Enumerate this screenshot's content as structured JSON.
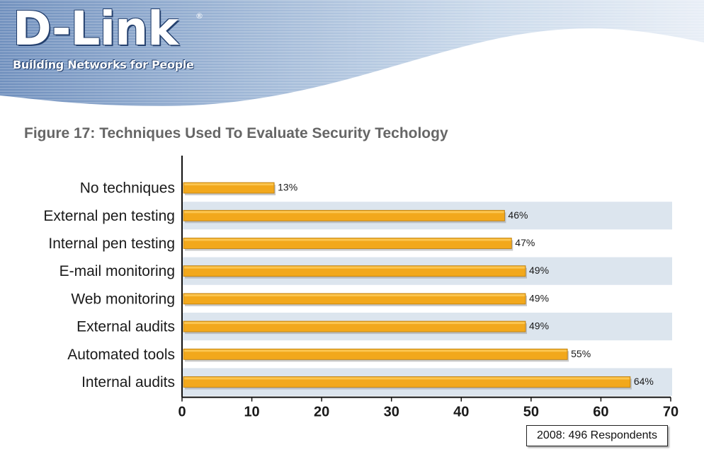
{
  "header": {
    "logo_text": "D-Link",
    "registered_mark": "®",
    "tagline": "Building Networks for People"
  },
  "chart_data": {
    "type": "bar",
    "orientation": "horizontal",
    "title": "Figure 17: Techniques Used To Evaluate Security Techology",
    "categories": [
      "No techniques",
      "External pen testing",
      "Internal pen testing",
      "E-mail monitoring",
      "Web monitoring",
      "External audits",
      "Automated tools",
      "Internal audits"
    ],
    "values": [
      13,
      46,
      47,
      49,
      49,
      49,
      55,
      64
    ],
    "value_labels": [
      "13%",
      "46%",
      "47%",
      "49%",
      "49%",
      "49%",
      "55%",
      "64%"
    ],
    "xlim": [
      0,
      70
    ],
    "x_ticks": [
      0,
      10,
      20,
      30,
      40,
      50,
      60,
      70
    ],
    "grid": false,
    "colors": {
      "bar": "#f2a81c",
      "bar_edge": "#b87a08",
      "band": "#dce5ee"
    },
    "note": "2008: 496 Respondents"
  }
}
